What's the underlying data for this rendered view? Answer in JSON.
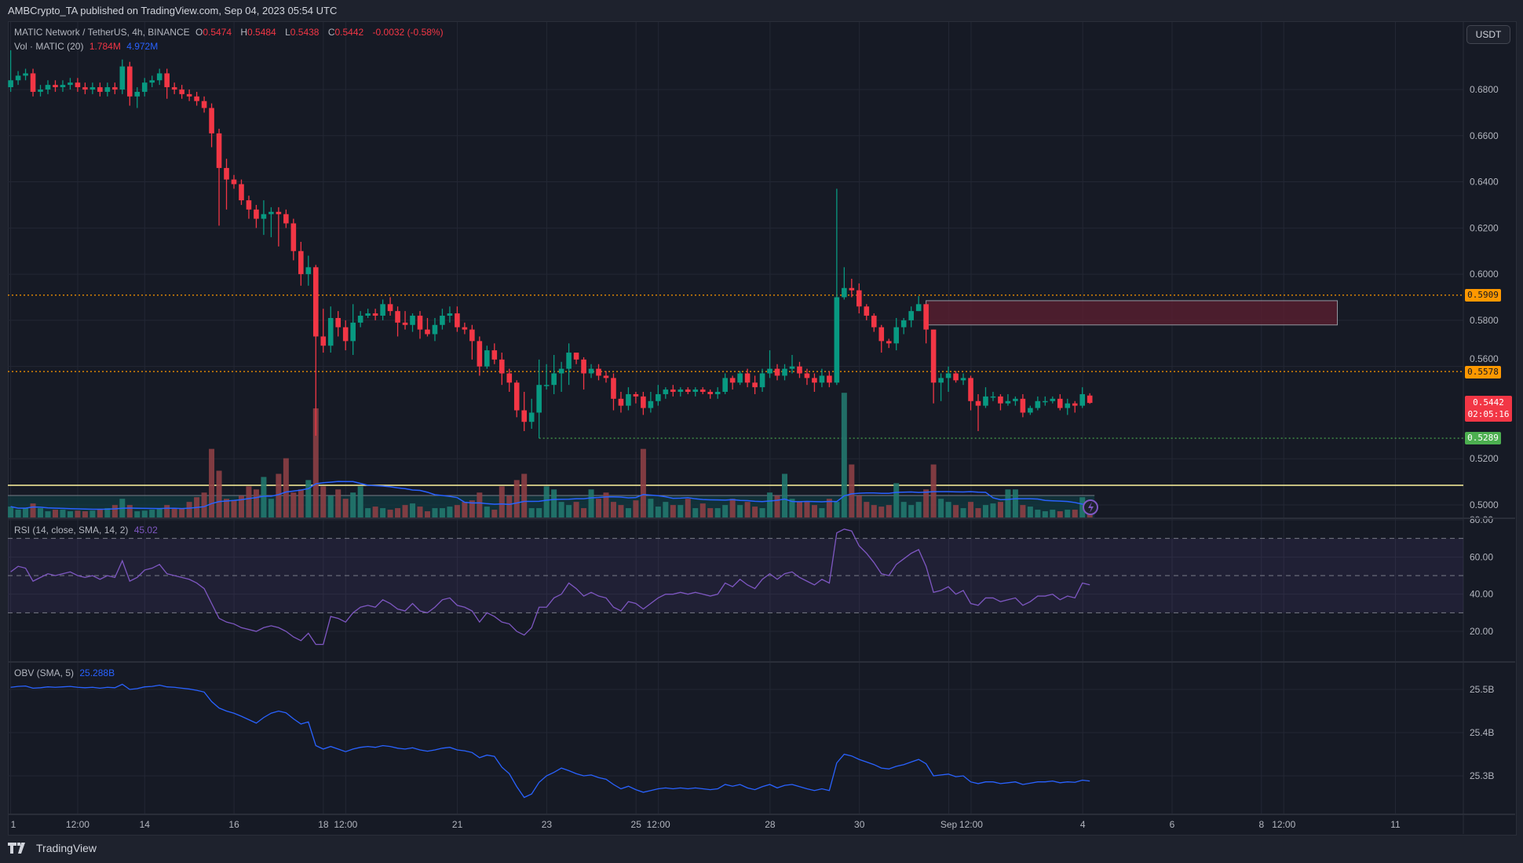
{
  "header": {
    "published": "AMBCrypto_TA published on TradingView.com, Sep 04, 2023 05:54 UTC"
  },
  "legend": {
    "symbol": "MATIC Network / TetherUS, 4h, BINANCE",
    "o_label": "O",
    "o": "0.5474",
    "h_label": "H",
    "h": "0.5484",
    "l_label": "L",
    "l": "0.5438",
    "c_label": "C",
    "c": "0.5442",
    "change": "-0.0032 (-0.58%)",
    "vol_label": "Vol · MATIC (20)",
    "vol_value": "1.784M",
    "vol_sma": "4.972M",
    "rsi_label": "RSI (14, close, SMA, 14, 2)",
    "rsi_value": "45.02",
    "obv_label": "OBV (SMA, 5)",
    "obv_value": "25.288B"
  },
  "currency_button": "USDT",
  "price_tags": {
    "resistance_high": "0.5909",
    "resistance_low": "0.5578",
    "last_price": "0.5442",
    "countdown": "02:05:16",
    "support": "0.5289"
  },
  "colors": {
    "up": "#089981",
    "down": "#f23645",
    "orange": "#ff9800",
    "support": "#4caf50",
    "rsi": "#7e57c2",
    "obv": "#2962ff",
    "zone": "#5d1f30",
    "yellow_line": "#fff59d"
  },
  "footer": {
    "brand": "TradingView"
  },
  "chart_data": [
    {
      "type": "candlestick",
      "interval": "4h",
      "start": "Aug 11 2023 00:00",
      "y_ticks": [
        "0.6800",
        "0.6600",
        "0.6400",
        "0.6200",
        "0.6000",
        "0.5800",
        "0.5600",
        "0.5200",
        "0.5000"
      ],
      "ylim": [
        0.495,
        0.7
      ],
      "x_ticks": [
        {
          "label": "1",
          "day": 0
        },
        {
          "label": "12:00",
          "day": 1.5
        },
        {
          "label": "14",
          "day": 3
        },
        {
          "label": "16",
          "day": 5
        },
        {
          "label": "18",
          "day": 7
        },
        {
          "label": "12:00",
          "day": 7.5
        },
        {
          "label": "21",
          "day": 10
        },
        {
          "label": "23",
          "day": 12
        },
        {
          "label": "25",
          "day": 14
        },
        {
          "label": "12:00",
          "day": 14.5
        },
        {
          "label": "28",
          "day": 17
        },
        {
          "label": "30",
          "day": 19
        },
        {
          "label": "Sep",
          "day": 21
        },
        {
          "label": "12:00",
          "day": 21.5
        },
        {
          "label": "4",
          "day": 24
        },
        {
          "label": "6",
          "day": 26
        },
        {
          "label": "8",
          "day": 28
        },
        {
          "label": "12:00",
          "day": 28.5
        },
        {
          "label": "11",
          "day": 31
        }
      ],
      "horizontal_levels": [
        {
          "price": 0.5909,
          "style": "dotted",
          "color": "#ff9800"
        },
        {
          "price": 0.5578,
          "style": "dotted",
          "color": "#ff9800"
        },
        {
          "price": 0.5289,
          "style": "dotted",
          "color": "#4caf50",
          "from_index": 71
        },
        {
          "price": 0.5085,
          "style": "solid",
          "color": "#fff59d"
        }
      ],
      "zone": {
        "from_index": 123,
        "to_day": 29.7,
        "top": 0.5885,
        "bottom": 0.578
      },
      "open": [
        0.681,
        0.684,
        0.686,
        0.687,
        0.679,
        0.68,
        0.682,
        0.681,
        0.682,
        0.683,
        0.681,
        0.68,
        0.681,
        0.679,
        0.681,
        0.68,
        0.69,
        0.677,
        0.679,
        0.683,
        0.684,
        0.687,
        0.681,
        0.68,
        0.678,
        0.677,
        0.675,
        0.672,
        0.661,
        0.646,
        0.641,
        0.639,
        0.632,
        0.628,
        0.624,
        0.626,
        0.627,
        0.626,
        0.622,
        0.61,
        0.6,
        0.603,
        0.573,
        0.569,
        0.581,
        0.577,
        0.571,
        0.579,
        0.582,
        0.583,
        0.582,
        0.587,
        0.584,
        0.579,
        0.578,
        0.582,
        0.576,
        0.574,
        0.578,
        0.582,
        0.583,
        0.577,
        0.576,
        0.571,
        0.56,
        0.567,
        0.563,
        0.557,
        0.553,
        0.541,
        0.536,
        0.54,
        0.552,
        0.552,
        0.557,
        0.559,
        0.566,
        0.563,
        0.557,
        0.559,
        0.556,
        0.555,
        0.546,
        0.543,
        0.548,
        0.547,
        0.542,
        0.545,
        0.548,
        0.55,
        0.549,
        0.55,
        0.549,
        0.55,
        0.549,
        0.548,
        0.549,
        0.555,
        0.553,
        0.557,
        0.553,
        0.551,
        0.557,
        0.559,
        0.556,
        0.559,
        0.56,
        0.557,
        0.555,
        0.553,
        0.556,
        0.553,
        0.59,
        0.594,
        0.593,
        0.586,
        0.582,
        0.577,
        0.571,
        0.57,
        0.577,
        0.58,
        0.584,
        0.587,
        0.576,
        0.553,
        0.555,
        0.557,
        0.554,
        0.555,
        0.545,
        0.543,
        0.547,
        0.547,
        0.544,
        0.545,
        0.546,
        0.54,
        0.542,
        0.545,
        0.545,
        0.546,
        0.542,
        0.544,
        0.543,
        0.5474
      ],
      "high": [
        0.697,
        0.688,
        0.689,
        0.689,
        0.682,
        0.684,
        0.684,
        0.684,
        0.685,
        0.685,
        0.683,
        0.683,
        0.683,
        0.683,
        0.683,
        0.693,
        0.692,
        0.681,
        0.685,
        0.686,
        0.689,
        0.689,
        0.683,
        0.682,
        0.68,
        0.679,
        0.677,
        0.674,
        0.663,
        0.65,
        0.643,
        0.641,
        0.634,
        0.63,
        0.632,
        0.629,
        0.629,
        0.628,
        0.624,
        0.614,
        0.608,
        0.604,
        0.585,
        0.586,
        0.584,
        0.58,
        0.587,
        0.584,
        0.585,
        0.585,
        0.589,
        0.59,
        0.586,
        0.584,
        0.583,
        0.584,
        0.581,
        0.581,
        0.585,
        0.586,
        0.586,
        0.579,
        0.578,
        0.573,
        0.569,
        0.57,
        0.566,
        0.559,
        0.554,
        0.549,
        0.546,
        0.563,
        0.561,
        0.565,
        0.562,
        0.57,
        0.566,
        0.564,
        0.561,
        0.561,
        0.558,
        0.557,
        0.549,
        0.551,
        0.549,
        0.549,
        0.549,
        0.552,
        0.551,
        0.552,
        0.551,
        0.551,
        0.551,
        0.551,
        0.55,
        0.551,
        0.557,
        0.556,
        0.558,
        0.559,
        0.556,
        0.559,
        0.567,
        0.561,
        0.561,
        0.565,
        0.562,
        0.559,
        0.557,
        0.559,
        0.558,
        0.637,
        0.603,
        0.598,
        0.596,
        0.587,
        0.583,
        0.578,
        0.572,
        0.581,
        0.581,
        0.586,
        0.5905,
        0.587,
        0.576,
        0.557,
        0.56,
        0.558,
        0.557,
        0.556,
        0.548,
        0.551,
        0.549,
        0.548,
        0.548,
        0.547,
        0.548,
        0.543,
        0.547,
        0.547,
        0.547,
        0.548,
        0.546,
        0.545,
        0.551,
        0.5484
      ],
      "low": [
        0.679,
        0.682,
        0.684,
        0.677,
        0.677,
        0.678,
        0.679,
        0.679,
        0.68,
        0.679,
        0.678,
        0.678,
        0.677,
        0.677,
        0.678,
        0.678,
        0.673,
        0.672,
        0.677,
        0.681,
        0.682,
        0.676,
        0.678,
        0.676,
        0.675,
        0.673,
        0.67,
        0.655,
        0.621,
        0.628,
        0.637,
        0.63,
        0.624,
        0.62,
        0.617,
        0.616,
        0.612,
        0.62,
        0.606,
        0.595,
        0.595,
        0.53,
        0.566,
        0.566,
        0.573,
        0.567,
        0.565,
        0.577,
        0.581,
        0.58,
        0.58,
        0.582,
        0.573,
        0.576,
        0.575,
        0.572,
        0.573,
        0.571,
        0.576,
        0.579,
        0.575,
        0.574,
        0.563,
        0.556,
        0.559,
        0.561,
        0.552,
        0.549,
        0.538,
        0.532,
        0.533,
        0.5289,
        0.55,
        0.548,
        0.549,
        0.552,
        0.561,
        0.55,
        0.555,
        0.554,
        0.553,
        0.541,
        0.54,
        0.541,
        0.544,
        0.539,
        0.54,
        0.543,
        0.546,
        0.547,
        0.547,
        0.548,
        0.547,
        0.548,
        0.546,
        0.546,
        0.548,
        0.55,
        0.552,
        0.551,
        0.548,
        0.549,
        0.555,
        0.554,
        0.554,
        0.557,
        0.555,
        0.552,
        0.549,
        0.551,
        0.551,
        0.552,
        0.589,
        0.59,
        0.583,
        0.58,
        0.575,
        0.566,
        0.568,
        0.567,
        0.574,
        0.577,
        0.584,
        0.57,
        0.544,
        0.545,
        0.549,
        0.553,
        0.552,
        0.541,
        0.532,
        0.542,
        0.545,
        0.541,
        0.543,
        0.543,
        0.538,
        0.539,
        0.541,
        0.543,
        0.544,
        0.541,
        0.539,
        0.54,
        0.542,
        0.5438
      ],
      "close": [
        0.684,
        0.686,
        0.687,
        0.679,
        0.68,
        0.682,
        0.681,
        0.682,
        0.683,
        0.681,
        0.68,
        0.681,
        0.679,
        0.681,
        0.68,
        0.69,
        0.677,
        0.679,
        0.683,
        0.684,
        0.687,
        0.681,
        0.68,
        0.678,
        0.677,
        0.675,
        0.672,
        0.661,
        0.646,
        0.641,
        0.639,
        0.632,
        0.628,
        0.624,
        0.626,
        0.627,
        0.626,
        0.622,
        0.61,
        0.6,
        0.603,
        0.573,
        0.569,
        0.581,
        0.577,
        0.571,
        0.579,
        0.582,
        0.583,
        0.582,
        0.587,
        0.584,
        0.579,
        0.578,
        0.582,
        0.576,
        0.574,
        0.578,
        0.582,
        0.583,
        0.577,
        0.576,
        0.571,
        0.56,
        0.567,
        0.563,
        0.557,
        0.553,
        0.541,
        0.536,
        0.54,
        0.552,
        0.552,
        0.557,
        0.559,
        0.566,
        0.563,
        0.557,
        0.559,
        0.556,
        0.555,
        0.546,
        0.543,
        0.548,
        0.547,
        0.542,
        0.545,
        0.548,
        0.55,
        0.549,
        0.55,
        0.549,
        0.55,
        0.549,
        0.548,
        0.549,
        0.555,
        0.553,
        0.557,
        0.553,
        0.551,
        0.557,
        0.559,
        0.556,
        0.559,
        0.56,
        0.557,
        0.555,
        0.553,
        0.556,
        0.553,
        0.59,
        0.594,
        0.593,
        0.586,
        0.582,
        0.577,
        0.571,
        0.57,
        0.577,
        0.58,
        0.584,
        0.587,
        0.576,
        0.553,
        0.555,
        0.557,
        0.554,
        0.555,
        0.545,
        0.543,
        0.547,
        0.547,
        0.544,
        0.545,
        0.546,
        0.54,
        0.542,
        0.545,
        0.545,
        0.546,
        0.542,
        0.544,
        0.543,
        0.548,
        0.5442
      ],
      "volume_m": [
        3.5,
        2.5,
        3,
        4.5,
        3,
        2,
        2.5,
        2.5,
        2,
        2.2,
        2,
        2.2,
        2.5,
        3,
        4,
        6,
        4,
        2,
        2.2,
        2.5,
        3,
        4,
        3,
        3,
        5,
        6.5,
        8,
        22,
        15,
        6,
        5.5,
        7,
        10,
        9,
        13,
        6,
        14,
        19,
        8,
        9,
        12,
        35,
        10,
        7,
        9,
        6,
        8,
        10,
        3,
        3.5,
        3,
        2.5,
        3,
        4,
        4.5,
        3.5,
        2,
        3,
        3,
        3.5,
        4,
        5,
        5.5,
        8,
        3.5,
        2.5,
        10,
        7,
        12,
        14,
        3,
        3,
        10,
        9,
        5,
        4,
        5,
        3,
        9,
        6,
        8,
        5,
        4,
        3,
        5.5,
        22,
        6,
        3.5,
        5,
        4,
        4,
        6,
        3,
        4.5,
        3,
        3,
        4,
        6,
        4,
        5,
        3.5,
        3,
        8,
        7,
        14,
        6,
        5,
        5,
        4,
        3,
        6,
        5,
        40,
        17,
        7,
        5,
        4,
        3.5,
        4,
        11,
        5,
        4,
        5,
        9,
        17,
        6,
        5,
        4,
        3,
        5,
        3,
        4,
        4.5,
        5,
        9,
        9,
        4,
        3.5,
        2.5,
        2,
        2.5,
        2,
        2.5,
        2.5,
        6.5,
        1.784
      ]
    },
    {
      "type": "line",
      "name": "RSI (14, close, SMA, 14, 2)",
      "y_ticks": [
        "80.00",
        "60.00",
        "40.00",
        "20.00"
      ],
      "ylim": [
        10,
        80
      ],
      "bands": [
        30,
        50,
        70
      ],
      "values": [
        52,
        55,
        54,
        47,
        49,
        51,
        50,
        51,
        52,
        50,
        49,
        50,
        48,
        50,
        49,
        58,
        47,
        49,
        53,
        54,
        56,
        51,
        50,
        49,
        48,
        46,
        43,
        35,
        27,
        25,
        24,
        22,
        21,
        20,
        22,
        23,
        22,
        20,
        17,
        15,
        19,
        13,
        13,
        28,
        27,
        25,
        30,
        33,
        34,
        33,
        37,
        35,
        32,
        31,
        35,
        31,
        30,
        33,
        37,
        38,
        34,
        33,
        31,
        25,
        30,
        28,
        25,
        24,
        20,
        18,
        22,
        33,
        33,
        38,
        40,
        46,
        43,
        39,
        41,
        39,
        38,
        33,
        31,
        36,
        35,
        32,
        35,
        38,
        40,
        40,
        41,
        40,
        41,
        40,
        39,
        40,
        46,
        44,
        48,
        45,
        43,
        48,
        51,
        48,
        51,
        52,
        49,
        47,
        45,
        48,
        46,
        73,
        75,
        74,
        66,
        62,
        57,
        51,
        50,
        56,
        59,
        62,
        64,
        55,
        41,
        42,
        44,
        40,
        42,
        35,
        34,
        38,
        38,
        36,
        37,
        38,
        34,
        36,
        39,
        39,
        40,
        37,
        39,
        38,
        46,
        45.02
      ]
    },
    {
      "type": "line",
      "name": "OBV (SMA, 5)",
      "y_ticks": [
        "25.5B",
        "25.4B",
        "25.3B"
      ],
      "ylim": [
        25.2,
        25.56
      ],
      "values": [
        25.505,
        25.507,
        25.508,
        25.503,
        25.504,
        25.506,
        25.505,
        25.506,
        25.507,
        25.505,
        25.504,
        25.505,
        25.503,
        25.505,
        25.504,
        25.512,
        25.5,
        25.502,
        25.506,
        25.507,
        25.51,
        25.506,
        25.505,
        25.503,
        25.501,
        25.498,
        25.494,
        25.472,
        25.457,
        25.45,
        25.445,
        25.438,
        25.43,
        25.422,
        25.435,
        25.445,
        25.45,
        25.446,
        25.432,
        25.42,
        25.425,
        25.37,
        25.362,
        25.368,
        25.362,
        25.356,
        25.362,
        25.366,
        25.368,
        25.366,
        25.37,
        25.368,
        25.364,
        25.362,
        25.365,
        25.36,
        25.357,
        25.36,
        25.364,
        25.366,
        25.36,
        25.358,
        25.354,
        25.342,
        25.348,
        25.345,
        25.32,
        25.305,
        25.275,
        25.25,
        25.258,
        25.285,
        25.3,
        25.308,
        25.318,
        25.312,
        25.305,
        25.3,
        25.302,
        25.296,
        25.292,
        25.28,
        25.27,
        25.276,
        25.268,
        25.262,
        25.266,
        25.27,
        25.272,
        25.27,
        25.272,
        25.27,
        25.272,
        25.27,
        25.268,
        25.27,
        25.28,
        25.276,
        25.28,
        25.272,
        25.268,
        25.275,
        25.28,
        25.272,
        25.278,
        25.28,
        25.275,
        25.27,
        25.266,
        25.27,
        25.266,
        25.33,
        25.35,
        25.346,
        25.338,
        25.332,
        25.326,
        25.318,
        25.316,
        25.322,
        25.326,
        25.332,
        25.338,
        25.328,
        25.3,
        25.302,
        25.304,
        25.298,
        25.3,
        25.286,
        25.282,
        25.286,
        25.286,
        25.282,
        25.284,
        25.286,
        25.28,
        25.283,
        25.286,
        25.286,
        25.288,
        25.284,
        25.286,
        25.285,
        25.29,
        25.288
      ]
    }
  ]
}
